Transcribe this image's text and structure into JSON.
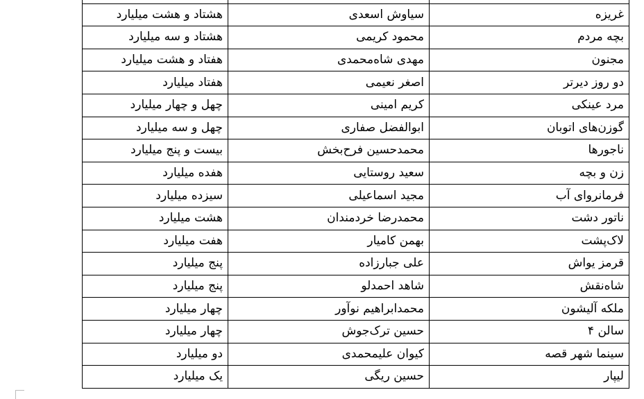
{
  "table": {
    "rows": [
      [
        "غریزه",
        "سیاوش اسعدی",
        "هشتاد و هشت میلیارد"
      ],
      [
        "بچه مردم",
        "محمود کریمی",
        "هشتاد و سه میلیارد"
      ],
      [
        "مجنون",
        "مهدی شاه‌محمدی",
        "هفتاد و هشت میلیارد"
      ],
      [
        "دو روز دیرتر",
        "اصغر نعیمی",
        "هفتاد میلیارد"
      ],
      [
        "مرد عینکی",
        "کریم امینی",
        "چهل و چهار میلیارد"
      ],
      [
        "گوزن‌های اتوبان",
        "ابوالفضل صفاری",
        "چهل و سه میلیارد"
      ],
      [
        "ناجورها",
        "محمدحسین فرح‌بخش",
        "بیست و پنج میلیارد"
      ],
      [
        "زن و بچه",
        "سعید روستایی",
        "هفده میلیارد"
      ],
      [
        "فرمانروای آب",
        "مجید اسماعیلی",
        "سیزده میلیارد"
      ],
      [
        "ناتور دشت",
        "محمدرضا خردمندان",
        "هشت میلیارد"
      ],
      [
        "لاک‌پشت",
        "بهمن کامیار",
        "هفت میلیارد"
      ],
      [
        "قرمز یواش",
        "علی جبارزاده",
        "پنج میلیارد"
      ],
      [
        "شاه‌نقش",
        "شاهد احمدلو",
        "پنج میلیارد"
      ],
      [
        "ملکه آلیشون",
        "محمدابراهیم نوآور",
        "چهار میلیارد"
      ],
      [
        "سالن ۴",
        "حسین ترک‌جوش",
        "چهار میلیارد"
      ],
      [
        "سینما شهر قصه",
        "کیوان علیمحمدی",
        "دو میلیارد"
      ],
      [
        "لیپار",
        "حسین ریگی",
        "یک میلیارد"
      ]
    ]
  }
}
